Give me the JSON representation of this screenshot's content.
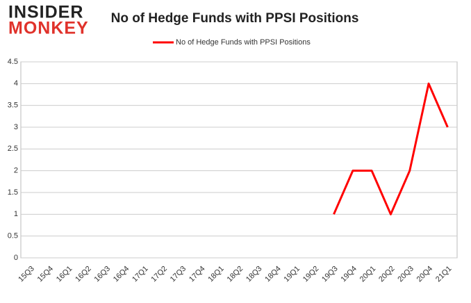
{
  "brand": {
    "top": "INSIDER",
    "bottom": "MONKEY"
  },
  "chart_data": {
    "type": "line",
    "title": "No of Hedge Funds with PPSI Positions",
    "categories": [
      "15Q3",
      "15Q4",
      "16Q1",
      "16Q2",
      "16Q3",
      "16Q4",
      "17Q1",
      "17Q2",
      "17Q3",
      "17Q4",
      "18Q1",
      "18Q2",
      "18Q3",
      "18Q4",
      "19Q1",
      "19Q2",
      "19Q3",
      "19Q4",
      "20Q1",
      "20Q2",
      "20Q3",
      "20Q4",
      "21Q1"
    ],
    "series": [
      {
        "name": "No of Hedge Funds with PPSI Positions",
        "color": "#ff0000",
        "values": [
          null,
          null,
          null,
          null,
          null,
          null,
          null,
          null,
          null,
          null,
          null,
          null,
          null,
          null,
          null,
          null,
          1,
          2,
          2,
          1,
          2,
          4,
          3
        ]
      }
    ],
    "ylim": [
      0,
      4.5
    ],
    "yticks": [
      0,
      0.5,
      1,
      1.5,
      2,
      2.5,
      3,
      3.5,
      4,
      4.5
    ],
    "grid": true,
    "legend": "top"
  }
}
